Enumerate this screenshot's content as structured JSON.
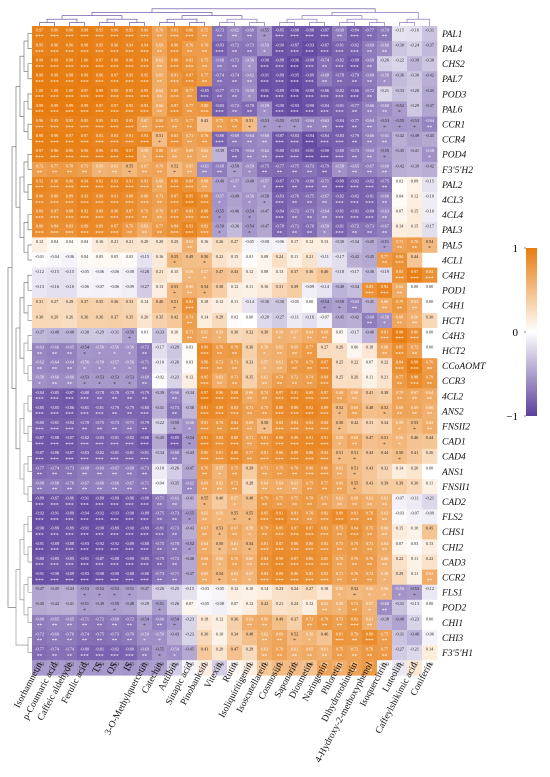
{
  "chart_data": {
    "type": "heatmap",
    "title": "",
    "colormap": {
      "low": "#5b3f9c",
      "mid": "#ffffff",
      "high": "#e77c0f"
    },
    "scale": {
      "min": -1,
      "max": 1,
      "tick_labels": [
        "1",
        "0",
        "−1"
      ]
    },
    "column_clusters_colors": [
      "#5b3f9c",
      "#7b5fb0"
    ],
    "columns": [
      "Isorhamnetin",
      "p-Coumaric acid",
      "Caffeic aldehyde",
      "Ferulic acid",
      "TS",
      "OS",
      "IS",
      "3-O-Methylquercetin",
      "Catechin",
      "Astilbin",
      "Sinapic acid",
      "Pinobanksin",
      "Vitexin",
      "Rutin",
      "Isoliquiritigenin",
      "Isoscutellarein",
      "Cosmosiin",
      "Saponarin",
      "Diosmetin",
      "Naringenin",
      "Phloretin",
      "Dihydrorobinetin",
      "4-Hydroxy-2-methoxyphenol",
      "Isoquercitrin",
      "Luteolin",
      "Caffeylshikimic acid",
      "Coniferin"
    ],
    "rows": [
      "PAL1",
      "PAL4",
      "CHS2",
      "PAL7",
      "POD3",
      "PAL6",
      "CCR1",
      "CCR4",
      "POD4",
      "F3'5'H2",
      "PAL2",
      "4CL3",
      "4CL4",
      "PAL3",
      "PAL5",
      "4CL1",
      "C4H2",
      "POD1",
      "C4H1",
      "HCT1",
      "C4H3",
      "HCT2",
      "CCoAOMT",
      "CCR3",
      "4CL2",
      "ANS2",
      "FNSII2",
      "CAD1",
      "CAD4",
      "ANS1",
      "FNSII1",
      "CAD2",
      "FLS2",
      "CHS1",
      "CHI2",
      "CAD3",
      "CCR2",
      "FLS1",
      "POD2",
      "CHI1",
      "CHI3",
      "F3'5'H1"
    ],
    "values": [
      [
        0.97,
        0.96,
        0.96,
        0.98,
        0.95,
        0.96,
        0.93,
        0.9,
        0.7,
        0.83,
        0.86,
        0.75,
        -0.73,
        -0.62,
        -0.69,
        -0.55,
        -0.85,
        -0.88,
        -0.88,
        -0.87,
        -0.69,
        -0.84,
        -0.77,
        -0.7,
        -0.15,
        -0.16,
        -0.31
      ],
      [
        0.95,
        0.96,
        0.96,
        0.98,
        0.95,
        0.96,
        0.94,
        0.94,
        0.69,
        0.88,
        0.76,
        0.76,
        -0.83,
        -0.72,
        -0.73,
        -0.59,
        -0.9,
        -0.87,
        -0.93,
        -0.87,
        -0.81,
        -0.82,
        -0.69,
        -0.6,
        -0.3,
        -0.24,
        -0.37
      ],
      [
        0.99,
        0.99,
        0.98,
        1.0,
        0.97,
        0.98,
        0.96,
        0.94,
        0.62,
        0.88,
        0.82,
        0.75,
        -0.68,
        -0.72,
        -0.56,
        -0.9,
        -0.88,
        -0.96,
        -0.88,
        -0.74,
        -0.82,
        -0.88,
        -0.69,
        -0.26,
        -0.22,
        -0.39,
        -0.3
      ],
      [
        0.99,
        0.99,
        0.98,
        0.99,
        0.96,
        0.97,
        0.95,
        0.95,
        0.65,
        0.81,
        0.87,
        0.77,
        -0.74,
        -0.74,
        -0.62,
        -0.91,
        -0.89,
        -0.95,
        -0.89,
        -0.68,
        -0.78,
        -0.79,
        -0.68,
        -0.58,
        -0.36,
        -0.3,
        -0.42
      ],
      [
        1.0,
        1.0,
        1.0,
        0.97,
        0.99,
        0.95,
        0.95,
        0.95,
        0.62,
        0.85,
        0.77,
        -0.85,
        -0.77,
        -0.73,
        -0.59,
        -0.91,
        -0.89,
        -0.96,
        -0.9,
        -0.86,
        -0.82,
        -0.86,
        -0.72,
        -0.21,
        -0.33,
        -0.28,
        -0.45
      ],
      [
        0.99,
        0.99,
        0.99,
        0.99,
        0.97,
        0.97,
        0.95,
        0.93,
        0.66,
        0.87,
        0.77,
        0.8,
        -0.83,
        -0.72,
        -0.78,
        -0.59,
        -0.9,
        -0.93,
        -0.9,
        -0.84,
        -0.81,
        -0.77,
        -0.66,
        -0.6,
        -0.52,
        -0.29,
        -0.47
      ],
      [
        0.96,
        0.95,
        0.95,
        0.95,
        0.95,
        0.95,
        0.93,
        0.67,
        0.8,
        0.75,
        0.77,
        0.43,
        0.72,
        0.76,
        0.51,
        -0.53,
        -0.55,
        -0.53,
        -0.64,
        -0.63,
        -0.84,
        -0.77,
        -0.64,
        -0.53,
        -0.55,
        -0.53,
        -0.64
      ],
      [
        0.98,
        0.98,
        0.97,
        0.97,
        0.93,
        0.93,
        0.91,
        0.93,
        0.51,
        0.83,
        0.71,
        0.76,
        -0.8,
        -0.69,
        -0.64,
        -0.6,
        -0.87,
        -0.83,
        -0.94,
        -0.84,
        -0.83,
        -0.79,
        -0.66,
        -0.61,
        -0.42,
        -0.49,
        -0.45
      ],
      [
        0.97,
        0.96,
        0.96,
        0.96,
        0.96,
        0.95,
        0.97,
        0.59,
        0.8,
        0.67,
        0.69,
        0.62,
        -0.39,
        -0.76,
        -0.64,
        -0.62,
        -0.88,
        -0.83,
        -0.91,
        -0.9,
        -0.8,
        -0.73,
        -0.63,
        -0.55,
        -0.45,
        -0.41,
        -0.58
      ],
      [
        0.73,
        0.77,
        0.78,
        0.73,
        0.58,
        0.61,
        0.55,
        0.67,
        0.7,
        0.52,
        0.65,
        -0.61,
        -0.68,
        -0.5,
        -0.59,
        -0.75,
        -0.77,
        -0.75,
        -0.73,
        -0.79,
        -0.58,
        -0.65,
        -0.67,
        -0.6,
        -0.42,
        -0.39,
        -0.42
      ],
      [
        0.92,
        0.9,
        0.9,
        0.94,
        0.92,
        0.93,
        0.91,
        0.83,
        0.66,
        0.89,
        0.84,
        0.68,
        -0.49,
        -0.57,
        -0.49,
        -0.57,
        -0.87,
        -0.79,
        -0.8,
        -0.71,
        -0.89,
        -0.82,
        -0.82,
        -0.75,
        0.02,
        0.09,
        -0.15
      ],
      [
        0.9,
        0.88,
        0.89,
        0.93,
        0.9,
        0.91,
        0.88,
        0.8,
        0.73,
        0.87,
        0.95,
        0.88,
        -0.57,
        -0.49,
        -0.56,
        -0.5,
        -0.83,
        -0.76,
        -0.75,
        -0.67,
        -0.82,
        -0.82,
        -0.81,
        -0.66,
        0.04,
        0.12,
        -0.1
      ],
      [
        0.89,
        0.87,
        0.88,
        0.92,
        0.89,
        0.9,
        0.87,
        0.79,
        0.7,
        0.87,
        0.84,
        0.88,
        -0.55,
        -0.46,
        -0.54,
        -0.47,
        -0.84,
        -0.72,
        -0.73,
        -0.64,
        -0.81,
        -0.81,
        -0.8,
        -0.63,
        0.07,
        0.15,
        -0.1
      ],
      [
        0.86,
        0.84,
        0.83,
        0.89,
        0.89,
        0.87,
        0.76,
        0.63,
        0.77,
        0.84,
        0.93,
        0.82,
        -0.5,
        -0.36,
        -0.54,
        -0.47,
        -0.78,
        -0.72,
        -0.76,
        -0.59,
        -0.81,
        -0.72,
        -0.73,
        -0.67,
        0.14,
        0.15,
        -0.17
      ],
      [
        0.12,
        0.04,
        0.04,
        0.04,
        0.16,
        0.21,
        0.21,
        0.2,
        0.2,
        0.25,
        0.62,
        0.16,
        0.26,
        0.27,
        -0.05,
        -0.08,
        -0.06,
        0.17,
        0.12,
        0.13,
        -0.3,
        -0.34,
        -0.45,
        -0.51,
        0.71,
        0.76,
        0.54
      ],
      [
        -0.01,
        -0.04,
        -0.06,
        0.04,
        0.05,
        0.05,
        0.03,
        -0.15,
        0.16,
        0.55,
        0.49,
        0.5,
        0.22,
        0.15,
        0.01,
        0.08,
        0.24,
        0.11,
        0.21,
        -0.11,
        -0.17,
        -0.42,
        -0.45,
        0.77,
        0.84,
        0.44
      ],
      [
        -0.12,
        -0.15,
        -0.15,
        -0.05,
        -0.06,
        -0.06,
        -0.08,
        -0.28,
        0.21,
        0.15,
        0.56,
        0.57,
        0.47,
        0.43,
        0.12,
        0.08,
        0.13,
        0.37,
        0.36,
        0.46,
        -0.18,
        -0.17,
        -0.36,
        -0.19,
        0.85,
        0.97,
        0.84
      ],
      [
        -0.13,
        -0.16,
        -0.16,
        -0.06,
        -0.07,
        -0.06,
        -0.09,
        -0.27,
        0.13,
        0.53,
        0.6,
        0.54,
        0.38,
        0.12,
        0.11,
        0.16,
        0.31,
        0.39,
        -0.09,
        -0.14,
        -0.4,
        -0.34,
        0.83,
        0.92,
        0.64,
        0.0,
        0.0
      ],
      [
        0.31,
        0.27,
        0.28,
        0.37,
        0.35,
        0.36,
        0.33,
        0.14,
        0.46,
        0.51,
        0.84,
        0.18,
        0.12,
        0.11,
        -0.14,
        -0.3,
        -0.3,
        -0.05,
        0.0,
        -0.54,
        -0.5,
        -0.63,
        -0.41,
        0.66,
        0.79,
        0.63,
        0.0
      ],
      [
        0.3,
        0.29,
        0.26,
        0.36,
        0.36,
        0.37,
        0.35,
        0.2,
        0.35,
        0.42,
        0.74,
        0.14,
        0.28,
        0.02,
        -0.0,
        -0.2,
        -0.27,
        -0.11,
        -0.16,
        -0.07,
        -0.45,
        -0.42,
        -0.68,
        -0.58,
        0.68,
        0.6,
        0.3
      ],
      [
        -0.37,
        -0.4,
        -0.4,
        -0.3,
        -0.29,
        -0.31,
        -0.5,
        0.01,
        -0.33,
        0.1,
        0.71,
        0.65,
        0.59,
        0.3,
        0.32,
        0.38,
        0.59,
        0.57,
        0.64,
        0.68,
        0.05,
        -0.17,
        -0.4,
        0.81,
        0.98,
        0.86,
        0.0
      ],
      [
        -0.63,
        -0.66,
        -0.65,
        -0.54,
        -0.56,
        -0.56,
        -0.56,
        -0.72,
        -0.17,
        -0.29,
        0.03,
        0.89,
        0.76,
        0.78,
        0.36,
        0.59,
        0.62,
        0.69,
        0.77,
        0.27,
        0.26,
        0.06,
        0.18,
        0.68,
        0.85,
        0.72,
        0.0
      ],
      [
        -0.62,
        -0.64,
        -0.64,
        -0.56,
        -0.58,
        -0.57,
        -0.56,
        -0.71,
        -0.1,
        -0.26,
        0.03,
        0.86,
        0.73,
        0.71,
        0.33,
        0.57,
        0.61,
        0.78,
        0.79,
        0.87,
        0.25,
        0.22,
        0.07,
        0.22,
        0.84,
        0.98,
        0.76
      ],
      [
        -0.58,
        -0.6,
        -0.6,
        -0.53,
        -0.53,
        -0.53,
        -0.53,
        -0.68,
        -0.02,
        -0.23,
        0.12,
        0.85,
        0.63,
        0.73,
        0.35,
        0.61,
        0.74,
        0.72,
        0.74,
        0.84,
        0.25,
        0.26,
        0.11,
        0.21,
        0.77,
        0.88,
        0.79
      ],
      [
        -0.84,
        -0.85,
        -0.87,
        -0.8,
        -0.78,
        -0.78,
        -0.78,
        -0.79,
        -0.39,
        -0.66,
        -0.34,
        0.97,
        0.9,
        0.88,
        0.66,
        0.74,
        0.87,
        0.91,
        0.89,
        0.87,
        0.68,
        0.6,
        0.41,
        0.38,
        0.7,
        0.67,
        0.64
      ],
      [
        -0.85,
        -0.85,
        -0.86,
        -0.81,
        -0.81,
        -0.79,
        -0.79,
        -0.8,
        -0.41,
        -0.73,
        -0.38,
        0.91,
        0.89,
        0.83,
        0.73,
        0.75,
        0.88,
        0.89,
        0.92,
        0.89,
        0.52,
        0.69,
        0.48,
        0.52,
        0.69,
        0.69,
        0.6
      ],
      [
        -0.8,
        -0.81,
        -0.82,
        -0.78,
        -0.75,
        -0.73,
        -0.71,
        -0.79,
        -0.22,
        -0.5,
        -0.56,
        0.81,
        0.78,
        0.84,
        0.69,
        0.5,
        0.82,
        0.82,
        0.84,
        0.84,
        0.5,
        0.42,
        0.31,
        0.34,
        0.59,
        0.53,
        0.62
      ],
      [
        -0.87,
        -0.88,
        -0.87,
        -0.82,
        -0.83,
        -0.81,
        -0.82,
        -0.88,
        -0.45,
        -0.85,
        -0.54,
        0.91,
        0.84,
        0.88,
        0.71,
        0.81,
        0.88,
        0.89,
        0.91,
        0.91,
        0.58,
        0.68,
        0.47,
        0.51,
        0.56,
        0.46,
        0.44
      ],
      [
        -0.87,
        -0.86,
        -0.87,
        -0.83,
        -0.82,
        -0.81,
        -0.81,
        -0.81,
        -0.34,
        -0.68,
        -0.43,
        0.85,
        0.81,
        0.89,
        0.77,
        0.81,
        0.86,
        0.89,
        0.88,
        0.84,
        0.51,
        0.51,
        0.43,
        0.44,
        0.5,
        0.41,
        0.26
      ],
      [
        -0.77,
        -0.74,
        -0.73,
        -0.68,
        -0.69,
        -0.67,
        -0.68,
        -0.73,
        -0.1,
        -0.26,
        -0.47,
        0.76,
        0.57,
        0.75,
        0.39,
        0.71,
        0.75,
        0.78,
        0.8,
        0.8,
        0.63,
        0.51,
        0.43,
        0.32,
        0.14,
        0.2,
        0.0
      ],
      [
        -0.68,
        -0.68,
        -0.7,
        -0.67,
        -0.66,
        -0.66,
        -0.67,
        -0.71,
        -0.04,
        -0.35,
        -0.62,
        0.69,
        0.62,
        0.72,
        0.28,
        0.64,
        0.64,
        0.61,
        0.75,
        0.77,
        0.69,
        0.55,
        0.43,
        0.39,
        0.39,
        0.3,
        0.11
      ],
      [
        -0.89,
        -0.87,
        -0.86,
        -0.91,
        -0.89,
        -0.89,
        -0.86,
        -0.88,
        -0.71,
        -0.63,
        -0.41,
        0.55,
        0.4,
        0.57,
        0.48,
        0.79,
        0.75,
        0.75,
        0.78,
        0.71,
        0.61,
        0.68,
        0.62,
        0.61,
        -0.07,
        -0.11,
        -0.21
      ],
      [
        -0.92,
        -0.91,
        -0.89,
        -0.94,
        -0.92,
        -0.93,
        -0.9,
        -0.88,
        -0.75,
        -0.73,
        -0.55,
        0.62,
        0.56,
        0.55,
        0.55,
        0.85,
        0.91,
        0.81,
        0.76,
        0.82,
        0.89,
        0.81,
        0.78,
        0.63,
        -0.03,
        -0.07,
        -0.09
      ],
      [
        -0.9,
        -0.89,
        -0.89,
        -0.91,
        -0.9,
        -0.89,
        -0.9,
        -0.89,
        -0.81,
        -0.73,
        -0.43,
        0.67,
        0.53,
        0.67,
        0.58,
        0.79,
        0.85,
        0.87,
        0.87,
        0.82,
        0.73,
        0.84,
        0.75,
        0.6,
        0.15,
        0.1,
        0.45
      ],
      [
        -0.91,
        -0.89,
        -0.88,
        -0.93,
        -0.92,
        -0.92,
        -0.89,
        -0.88,
        -0.75,
        -0.7,
        -0.52,
        0.64,
        0.5,
        0.61,
        0.54,
        0.81,
        0.87,
        0.86,
        0.86,
        0.82,
        0.75,
        0.78,
        0.73,
        0.64,
        0.07,
        0.03,
        0.13
      ],
      [
        -0.88,
        -0.85,
        -0.85,
        -0.91,
        -0.87,
        -0.88,
        -0.89,
        -0.85,
        -0.79,
        -0.72,
        -0.46,
        0.68,
        0.56,
        0.7,
        0.6,
        0.84,
        0.9,
        0.87,
        0.86,
        0.85,
        0.7,
        0.76,
        0.76,
        0.6,
        0.22,
        0.11,
        0.22
      ],
      [
        -0.91,
        -0.9,
        -0.89,
        -0.93,
        -0.9,
        -0.9,
        -0.88,
        -0.88,
        -0.73,
        -0.71,
        -0.47,
        0.65,
        0.54,
        0.63,
        0.57,
        0.83,
        0.89,
        0.86,
        0.85,
        0.82,
        0.71,
        0.76,
        0.74,
        0.58,
        0.29,
        0.11,
        0.63
      ],
      [
        -0.47,
        -0.45,
        -0.43,
        -0.53,
        -0.52,
        -0.53,
        -0.51,
        -0.47,
        -0.26,
        -0.25,
        -0.15,
        -0.03,
        -0.05,
        0.12,
        0.1,
        0.14,
        0.23,
        0.24,
        0.27,
        0.18,
        0.56,
        0.52,
        0.56,
        0.56,
        -0.56,
        -0.53,
        -0.12
      ],
      [
        -0.45,
        -0.42,
        -0.41,
        -0.51,
        -0.49,
        -0.5,
        -0.48,
        -0.29,
        -0.51,
        -0.26,
        0.07,
        -0.05,
        -0.08,
        0.07,
        0.12,
        0.42,
        0.21,
        0.24,
        0.12,
        0.62,
        0.58,
        0.73,
        0.57,
        -0.6,
        -0.31,
        -0.13,
        0.0
      ],
      [
        -0.68,
        -0.65,
        -0.65,
        -0.71,
        -0.72,
        -0.69,
        -0.72,
        -0.54,
        -0.66,
        -0.54,
        -0.23,
        0.18,
        0.12,
        0.36,
        0.63,
        0.66,
        0.49,
        0.37,
        0.72,
        0.79,
        0.73,
        0.82,
        0.61,
        -0.38,
        -0.48,
        -0.23,
        0.0
      ],
      [
        -0.72,
        -0.69,
        -0.7,
        -0.74,
        -0.75,
        -0.73,
        -0.7,
        -0.59,
        -0.59,
        -0.43,
        -0.23,
        0.3,
        0.1,
        0.34,
        0.48,
        0.62,
        0.69,
        0.52,
        0.56,
        0.46,
        0.81,
        0.79,
        0.88,
        0.75,
        -0.31,
        -0.4,
        -0.06
      ],
      [
        -0.77,
        -0.74,
        -0.74,
        -0.8,
        -0.81,
        -0.82,
        -0.8,
        -0.69,
        -0.55,
        -0.59,
        -0.45,
        0.41,
        0.2,
        0.47,
        0.28,
        0.63,
        0.7,
        0.61,
        0.65,
        0.61,
        0.75,
        0.72,
        0.78,
        0.77,
        -0.27,
        -0.21,
        0.14
      ],
      [
        -0.53,
        -0.51,
        -0.52,
        -0.54,
        -0.54,
        -0.53,
        -0.55,
        -0.51,
        -0.5,
        -0.26,
        -0.05,
        0.12,
        -0.26,
        0.05,
        0.13,
        0.42,
        0.51,
        0.51,
        0.46,
        0.69,
        0.61,
        0.71,
        0.77,
        -0.03,
        -0.12,
        0.17,
        0.0
      ]
    ]
  }
}
